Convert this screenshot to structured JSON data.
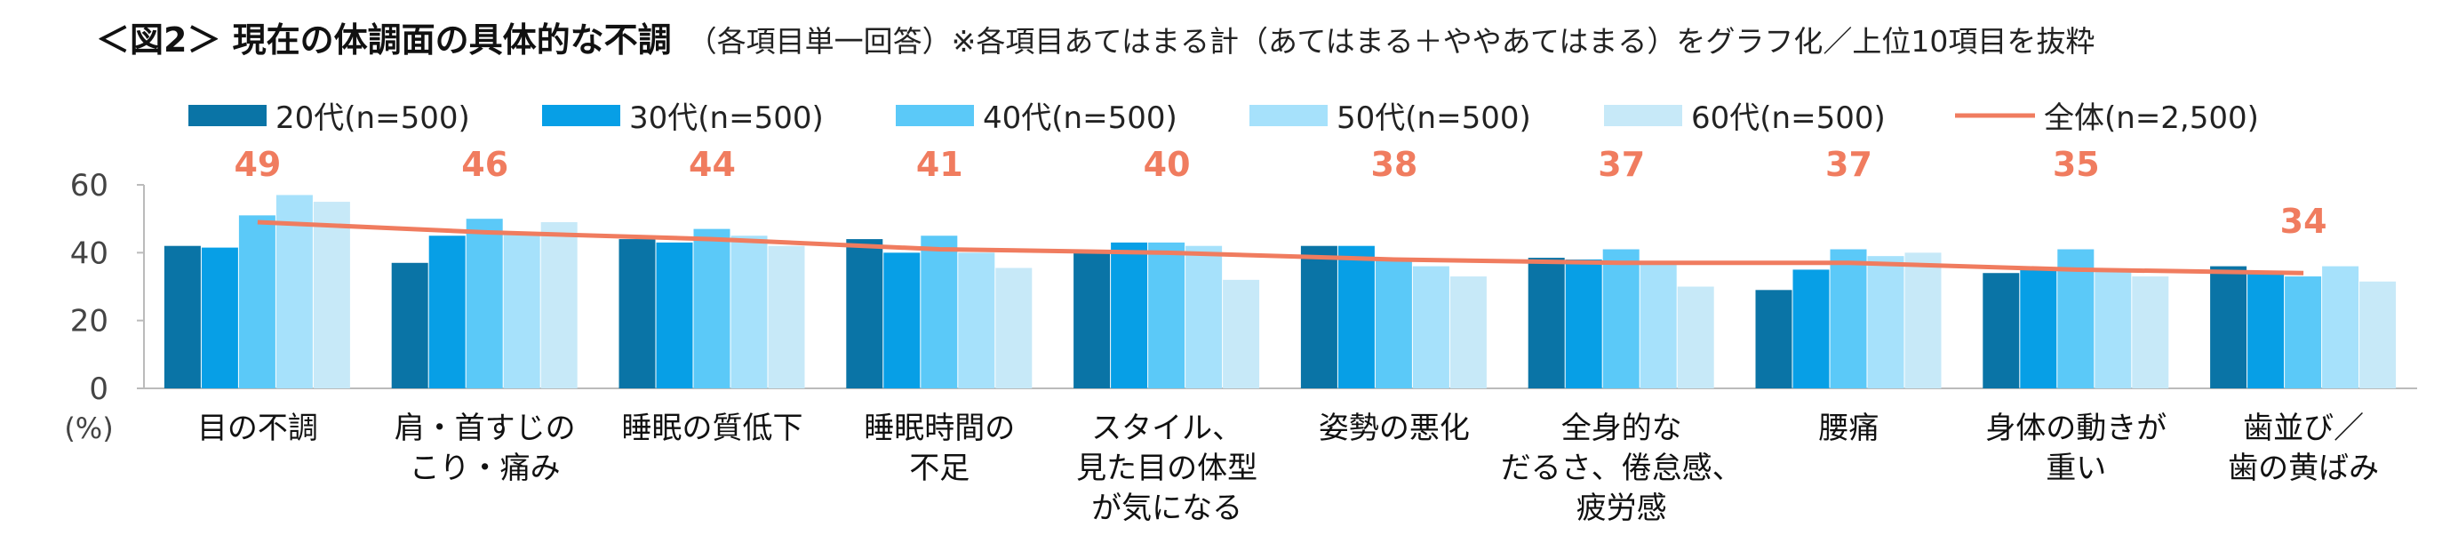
{
  "title": "＜図2＞ 現在の体調面の具体的な不調",
  "note": "（各項目単一回答）※各項目あてはまる計（あてはまる＋ややあてはまる）をグラフ化／上位10項目を抜粋",
  "chart_data": {
    "type": "bar",
    "y_unit_label": "(%)",
    "ylim": [
      0,
      60
    ],
    "yticks": [
      0,
      20,
      40,
      60
    ],
    "grid": false,
    "legend_position": "top",
    "categories": [
      [
        "目の不調"
      ],
      [
        "肩・首すじの",
        "こり・痛み"
      ],
      [
        "睡眠の質低下"
      ],
      [
        "睡眠時間の",
        "不足"
      ],
      [
        "スタイル、",
        "見た目の体型",
        "が気になる"
      ],
      [
        "姿勢の悪化"
      ],
      [
        "全身的な",
        "だるさ、倦怠感、",
        "疲労感"
      ],
      [
        "腰痛"
      ],
      [
        "身体の動きが",
        "重い"
      ],
      [
        "歯並び／",
        "歯の黄ばみ"
      ]
    ],
    "series": [
      {
        "name": "20代(n=500)",
        "color": "#0a74a6",
        "values": [
          42,
          37,
          44,
          44,
          40,
          42,
          38.5,
          29,
          34,
          36
        ]
      },
      {
        "name": "30代(n=500)",
        "color": "#079fe6",
        "values": [
          41.5,
          45,
          43,
          40,
          43,
          42,
          38,
          35,
          35,
          34
        ]
      },
      {
        "name": "40代(n=500)",
        "color": "#5bc9f8",
        "values": [
          51,
          50,
          47,
          45,
          43,
          38,
          41,
          41,
          41,
          33
        ]
      },
      {
        "name": "50代(n=500)",
        "color": "#a6e1fb",
        "values": [
          57,
          46,
          45,
          40,
          42,
          36,
          37,
          39,
          35,
          36
        ]
      },
      {
        "name": "60代(n=500)",
        "color": "#c7e9f8",
        "values": [
          55,
          49,
          42,
          35.5,
          32,
          33,
          30,
          40,
          33,
          31.5
        ]
      }
    ],
    "total_series": {
      "name": "全体(n=2,500)",
      "type": "line",
      "color": "#f07c5f",
      "values": [
        49,
        46,
        44,
        41,
        40,
        38,
        37,
        37,
        35,
        34
      ],
      "labels": [
        "49",
        "46",
        "44",
        "41",
        "40",
        "38",
        "37",
        "37",
        "35",
        "34"
      ]
    }
  }
}
